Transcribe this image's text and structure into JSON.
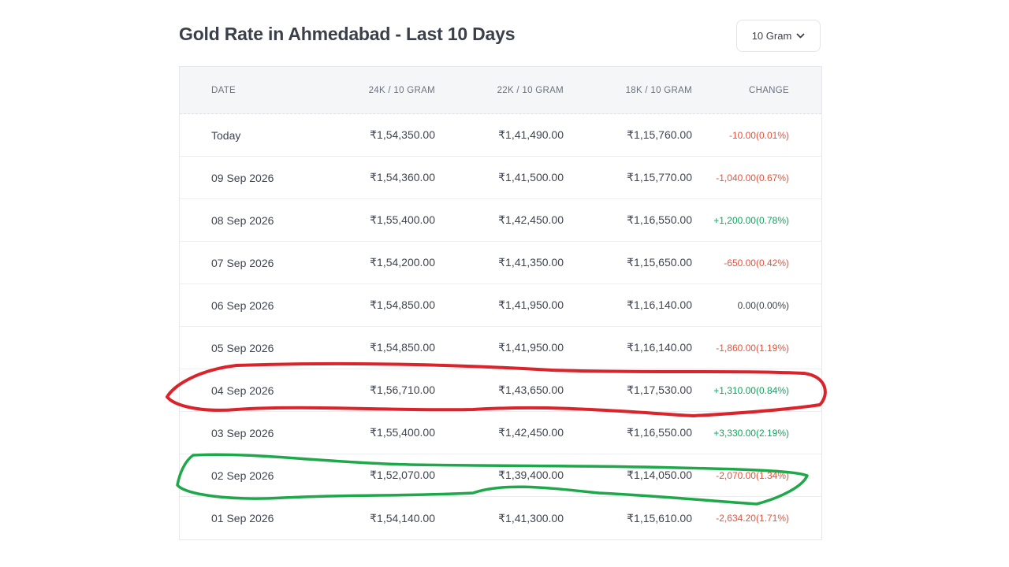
{
  "title": "Gold Rate in Ahmedabad - Last 10 Days",
  "unit_selector": {
    "selected": "10 Gram",
    "icon": "chevron-down-icon"
  },
  "table": {
    "headers": {
      "date": "DATE",
      "k24": "24K / 10 GRAM",
      "k22": "22K / 10 GRAM",
      "k18": "18K / 10 GRAM",
      "change": "CHANGE"
    },
    "rows": [
      {
        "date": "Today",
        "k24": "₹1,54,350.00",
        "k22": "₹1,41,490.00",
        "k18": "₹1,15,760.00",
        "change": "-10.00(0.01%)",
        "trend": "neg"
      },
      {
        "date": "09 Sep 2026",
        "k24": "₹1,54,360.00",
        "k22": "₹1,41,500.00",
        "k18": "₹1,15,770.00",
        "change": "-1,040.00(0.67%)",
        "trend": "neg"
      },
      {
        "date": "08 Sep 2026",
        "k24": "₹1,55,400.00",
        "k22": "₹1,42,450.00",
        "k18": "₹1,16,550.00",
        "change": "+1,200.00(0.78%)",
        "trend": "pos"
      },
      {
        "date": "07 Sep 2026",
        "k24": "₹1,54,200.00",
        "k22": "₹1,41,350.00",
        "k18": "₹1,15,650.00",
        "change": "-650.00(0.42%)",
        "trend": "neg"
      },
      {
        "date": "06 Sep 2026",
        "k24": "₹1,54,850.00",
        "k22": "₹1,41,950.00",
        "k18": "₹1,16,140.00",
        "change": "0.00(0.00%)",
        "trend": "zero"
      },
      {
        "date": "05 Sep 2026",
        "k24": "₹1,54,850.00",
        "k22": "₹1,41,950.00",
        "k18": "₹1,16,140.00",
        "change": "-1,860.00(1.19%)",
        "trend": "neg"
      },
      {
        "date": "04 Sep 2026",
        "k24": "₹1,56,710.00",
        "k22": "₹1,43,650.00",
        "k18": "₹1,17,530.00",
        "change": "+1,310.00(0.84%)",
        "trend": "pos"
      },
      {
        "date": "03 Sep 2026",
        "k24": "₹1,55,400.00",
        "k22": "₹1,42,450.00",
        "k18": "₹1,16,550.00",
        "change": "+3,330.00(2.19%)",
        "trend": "pos"
      },
      {
        "date": "02 Sep 2026",
        "k24": "₹1,52,070.00",
        "k22": "₹1,39,400.00",
        "k18": "₹1,14,050.00",
        "change": "-2,070.00(1.34%)",
        "trend": "neg"
      },
      {
        "date": "01 Sep 2026",
        "k24": "₹1,54,140.00",
        "k22": "₹1,41,300.00",
        "k18": "₹1,15,610.00",
        "change": "-2,634.20(1.71%)",
        "trend": "neg"
      }
    ]
  },
  "colors": {
    "negative": "#e5533d",
    "positive": "#14a35f",
    "red_annotation": "#d9242b",
    "green_annotation": "#1fa84a"
  },
  "annotations": [
    {
      "type": "hand-drawn-circle",
      "color": "red",
      "row": "04 Sep 2026"
    },
    {
      "type": "hand-drawn-circle",
      "color": "green",
      "row": "02 Sep 2026"
    }
  ]
}
